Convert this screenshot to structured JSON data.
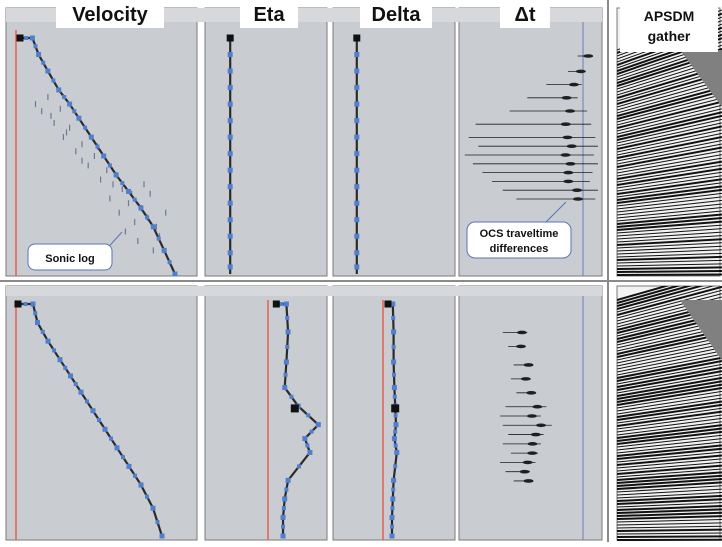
{
  "headers": {
    "velocity": "Velocity",
    "eta": "Eta",
    "delta": "Delta",
    "dt": "Δt",
    "gather_line1": "APSDM",
    "gather_line2": "gather"
  },
  "annotations": {
    "sonic_log": "Sonic log",
    "ocs_line1": "OCS traveltime",
    "ocs_line2": "differences"
  },
  "colors": {
    "panel_bg": "#c9ccd1",
    "curve": "#2b2b2b",
    "marker": "#4e7fd0",
    "reference": "#e8584a",
    "scatter": "#6d7894",
    "residual": "#1f1f1f",
    "frame": "#7a7a7a"
  },
  "chart_data": [
    {
      "type": "line",
      "panel": "velocity-top",
      "series": [
        {
          "x": [
            0.0,
            0.08,
            0.12,
            0.18,
            0.25,
            0.32,
            0.38,
            0.46,
            0.54,
            0.62,
            0.7,
            0.78,
            0.86,
            0.93,
            1.0
          ],
          "y": [
            0.0,
            0.0,
            0.07,
            0.14,
            0.22,
            0.28,
            0.34,
            0.42,
            0.5,
            0.58,
            0.65,
            0.72,
            0.8,
            0.9,
            1.0
          ]
        }
      ],
      "scatter_x": [
        0.1,
        0.18,
        0.14,
        0.26,
        0.22,
        0.32,
        0.28,
        0.4,
        0.36,
        0.48,
        0.44,
        0.56,
        0.52,
        0.6,
        0.66,
        0.72,
        0.58,
        0.7,
        0.78,
        0.64,
        0.82,
        0.74,
        0.88,
        0.68,
        0.84,
        0.62,
        0.9,
        0.76,
        0.94,
        0.2,
        0.3,
        0.5,
        0.4,
        0.8,
        0.86
      ],
      "scatter_y": [
        0.28,
        0.25,
        0.31,
        0.3,
        0.36,
        0.38,
        0.42,
        0.45,
        0.48,
        0.5,
        0.54,
        0.56,
        0.6,
        0.62,
        0.64,
        0.66,
        0.68,
        0.7,
        0.72,
        0.74,
        0.76,
        0.78,
        0.8,
        0.82,
        0.66,
        0.58,
        0.84,
        0.86,
        0.74,
        0.33,
        0.4,
        0.46,
        0.52,
        0.62,
        0.9
      ]
    },
    {
      "type": "line",
      "panel": "eta-top",
      "series": [
        {
          "x": [
            0.38,
            0.38
          ],
          "y": [
            0.0,
            1.0
          ]
        }
      ],
      "markers_y": [
        0.0,
        0.07,
        0.14,
        0.21,
        0.28,
        0.35,
        0.42,
        0.49,
        0.56,
        0.63,
        0.7,
        0.77,
        0.84,
        0.91,
        0.97
      ]
    },
    {
      "type": "line",
      "panel": "delta-top",
      "series": [
        {
          "x": [
            0.28,
            0.28
          ],
          "y": [
            0.0,
            1.0
          ]
        }
      ],
      "markers_y": [
        0.0,
        0.07,
        0.14,
        0.21,
        0.28,
        0.35,
        0.42,
        0.49,
        0.56,
        0.63,
        0.7,
        0.77,
        0.84,
        0.91,
        0.97
      ]
    },
    {
      "type": "scatter",
      "panel": "dt-top",
      "y": [
        0.05,
        0.12,
        0.18,
        0.24,
        0.3,
        0.36,
        0.42,
        0.46,
        0.5,
        0.54,
        0.58,
        0.62,
        0.66,
        0.7
      ],
      "left": [
        0.85,
        0.78,
        0.62,
        0.48,
        0.35,
        0.1,
        0.05,
        0.12,
        0.02,
        0.08,
        0.15,
        0.22,
        0.3,
        0.4
      ],
      "right": [
        0.95,
        0.9,
        0.88,
        0.85,
        0.92,
        0.95,
        0.98,
        1.0,
        0.97,
        1.0,
        0.96,
        0.94,
        1.0,
        0.98
      ]
    },
    {
      "type": "line",
      "panel": "velocity-bottom",
      "series": [
        {
          "x": [
            0.0,
            0.1,
            0.13,
            0.2,
            0.28,
            0.35,
            0.42,
            0.5,
            0.58,
            0.66,
            0.74,
            0.82,
            0.9,
            0.96
          ],
          "y": [
            0.0,
            0.0,
            0.08,
            0.16,
            0.24,
            0.31,
            0.38,
            0.46,
            0.54,
            0.62,
            0.7,
            0.78,
            0.88,
            1.0
          ]
        }
      ]
    },
    {
      "type": "line",
      "panel": "eta-bottom",
      "series": [
        {
          "x": [
            0.48,
            0.6,
            0.62,
            0.6,
            0.58,
            0.74,
            0.98,
            0.82,
            0.88,
            0.62,
            0.58,
            0.56,
            0.56
          ],
          "y": [
            0.0,
            0.0,
            0.12,
            0.25,
            0.36,
            0.44,
            0.52,
            0.58,
            0.64,
            0.76,
            0.84,
            0.92,
            1.0
          ]
        }
      ]
    },
    {
      "type": "line",
      "panel": "delta-bottom",
      "series": [
        {
          "x": [
            0.4,
            0.52,
            0.54,
            0.54,
            0.56,
            0.58,
            0.6,
            0.56,
            0.62,
            0.54,
            0.52,
            0.5,
            0.5
          ],
          "y": [
            0.0,
            0.0,
            0.12,
            0.25,
            0.36,
            0.44,
            0.52,
            0.58,
            0.64,
            0.76,
            0.84,
            0.92,
            1.0
          ]
        }
      ]
    },
    {
      "type": "scatter",
      "panel": "dt-bottom",
      "y": [
        0.14,
        0.2,
        0.28,
        0.34,
        0.4,
        0.46,
        0.5,
        0.54,
        0.58,
        0.62,
        0.66,
        0.7,
        0.74,
        0.78
      ],
      "left": [
        0.3,
        0.34,
        0.38,
        0.36,
        0.4,
        0.32,
        0.28,
        0.3,
        0.34,
        0.3,
        0.36,
        0.28,
        0.32,
        0.38
      ],
      "right": [
        0.48,
        0.46,
        0.52,
        0.5,
        0.54,
        0.62,
        0.58,
        0.66,
        0.6,
        0.58,
        0.56,
        0.54,
        0.5,
        0.52
      ]
    }
  ]
}
